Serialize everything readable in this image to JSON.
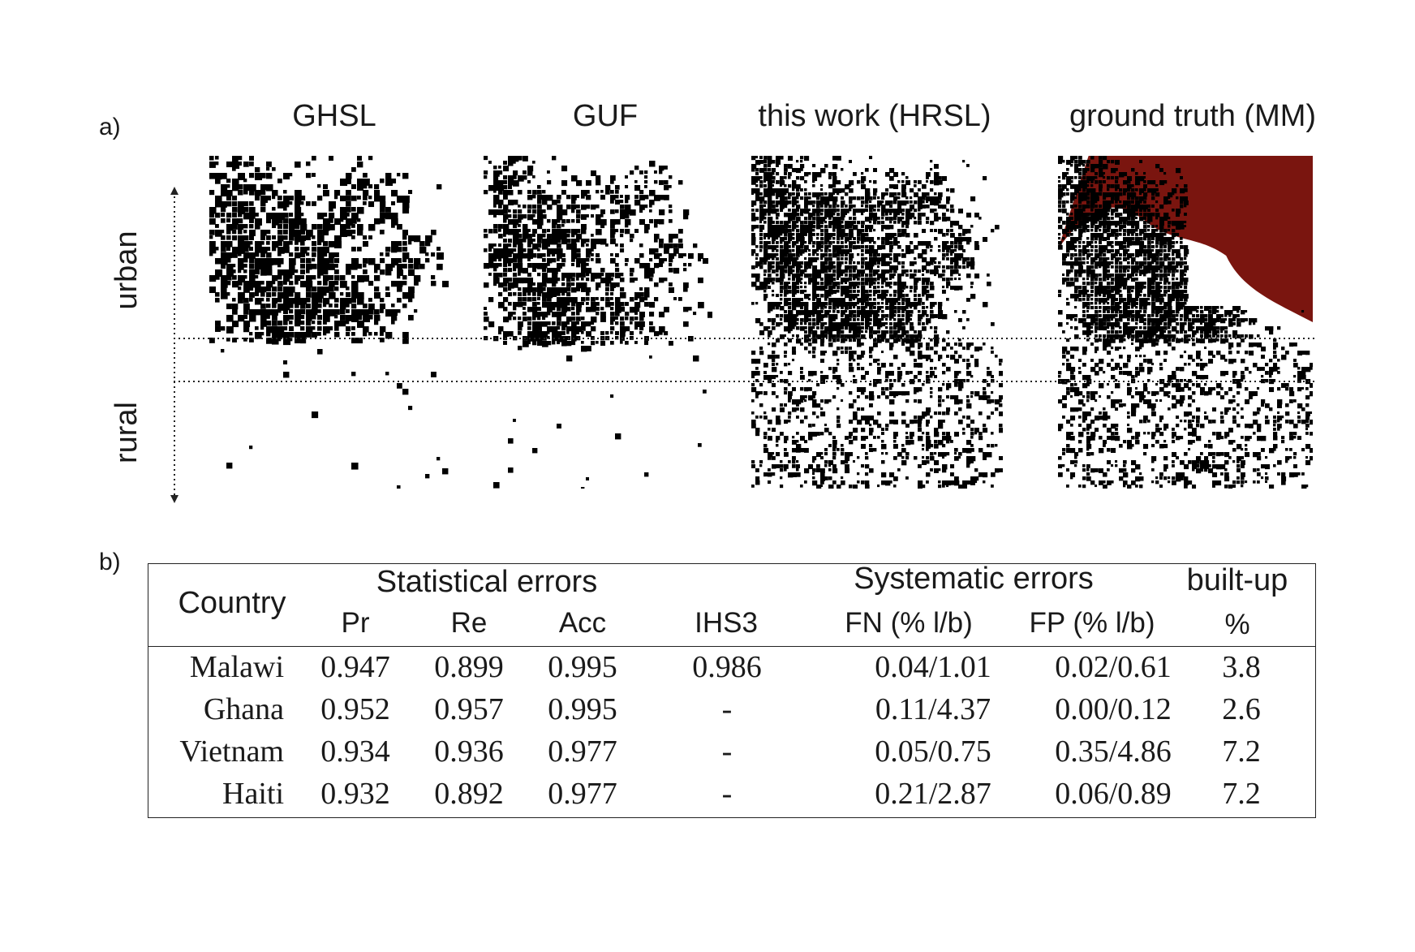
{
  "panel_a": {
    "label": "a)",
    "columns": [
      "GHSL",
      "GUF",
      "this work (HRSL)",
      "ground truth (MM)"
    ],
    "row_labels": {
      "urban": "urban",
      "rural": "rural"
    },
    "highlight_color": "#7a150f"
  },
  "panel_b": {
    "label": "b)",
    "header": {
      "country": "Country",
      "statistical": "Statistical errors",
      "systematic": "Systematic errors",
      "builtup": "built-up",
      "sub": [
        "Pr",
        "Re",
        "Acc",
        "IHS3",
        "FN (% l/b)",
        "FP (% l/b)",
        "%"
      ]
    },
    "rows": [
      {
        "country": "Malawi",
        "pr": "0.947",
        "re": "0.899",
        "acc": "0.995",
        "ihs3": "0.986",
        "fn": "0.04/1.01",
        "fp": "0.02/0.61",
        "builtup": "3.8"
      },
      {
        "country": "Ghana",
        "pr": "0.952",
        "re": "0.957",
        "acc": "0.995",
        "ihs3": "-",
        "fn": "0.11/4.37",
        "fp": "0.00/0.12",
        "builtup": "2.6"
      },
      {
        "country": "Vietnam",
        "pr": "0.934",
        "re": "0.936",
        "acc": "0.977",
        "ihs3": "-",
        "fn": "0.05/0.75",
        "fp": "0.35/4.86",
        "builtup": "7.2"
      },
      {
        "country": "Haiti",
        "pr": "0.932",
        "re": "0.892",
        "acc": "0.977",
        "ihs3": "-",
        "fn": "0.21/2.87",
        "fp": "0.06/0.89",
        "builtup": "7.2"
      }
    ]
  }
}
